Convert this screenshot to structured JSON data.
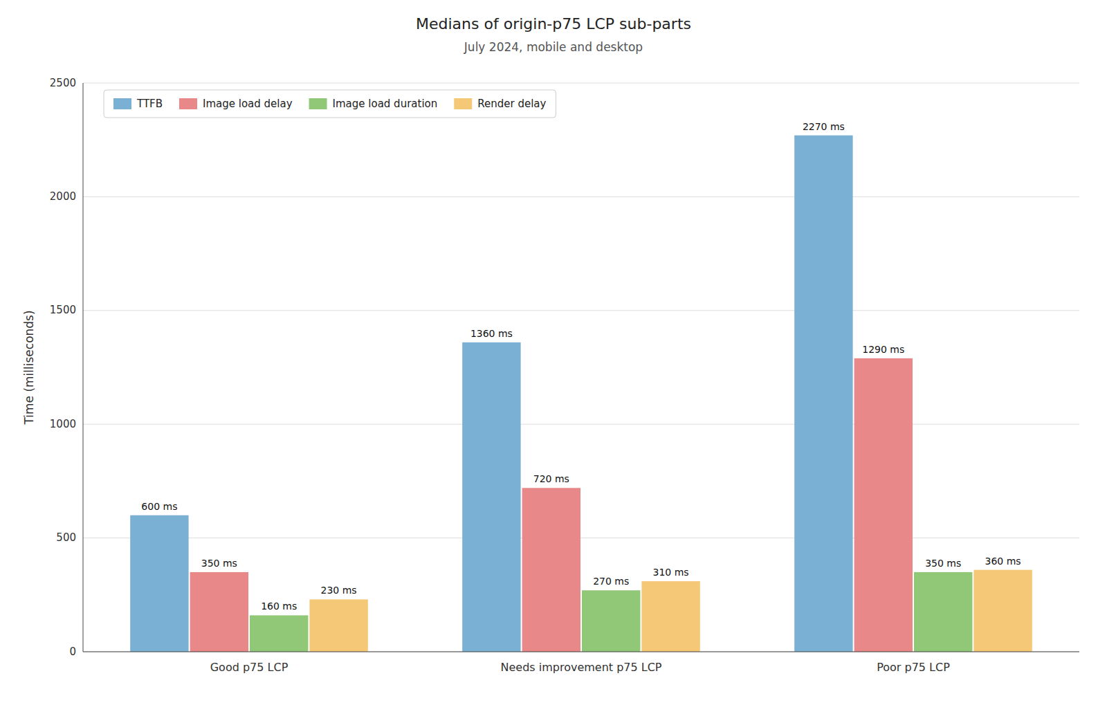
{
  "chart_data": {
    "type": "bar",
    "title": "Medians of origin-p75 LCP sub-parts",
    "subtitle": "July 2024, mobile and desktop",
    "categories": [
      "Good p75 LCP",
      "Needs improvement p75 LCP",
      "Poor p75 LCP"
    ],
    "series": [
      {
        "name": "TTFB",
        "color": "#7ab0d4",
        "values": [
          600,
          1360,
          2270
        ],
        "value_labels": [
          "600 ms",
          "1360 ms",
          "2270 ms"
        ]
      },
      {
        "name": "Image load delay",
        "color": "#e88888",
        "values": [
          350,
          720,
          1290
        ],
        "value_labels": [
          "350 ms",
          "720 ms",
          "1290 ms"
        ]
      },
      {
        "name": "Image load duration",
        "color": "#90c878",
        "values": [
          160,
          270,
          350
        ],
        "value_labels": [
          "160 ms",
          "270 ms",
          "350 ms"
        ]
      },
      {
        "name": "Render delay",
        "color": "#f5c878",
        "values": [
          230,
          310,
          360
        ],
        "value_labels": [
          "230 ms",
          "310 ms",
          "360 ms"
        ]
      }
    ],
    "ylabel": "Time (milliseconds)",
    "ylim": [
      0,
      2500
    ],
    "yticks": [
      0,
      500,
      1000,
      1500,
      2000,
      2500
    ],
    "grid": true,
    "legend": "upper left",
    "data_labels": true
  }
}
